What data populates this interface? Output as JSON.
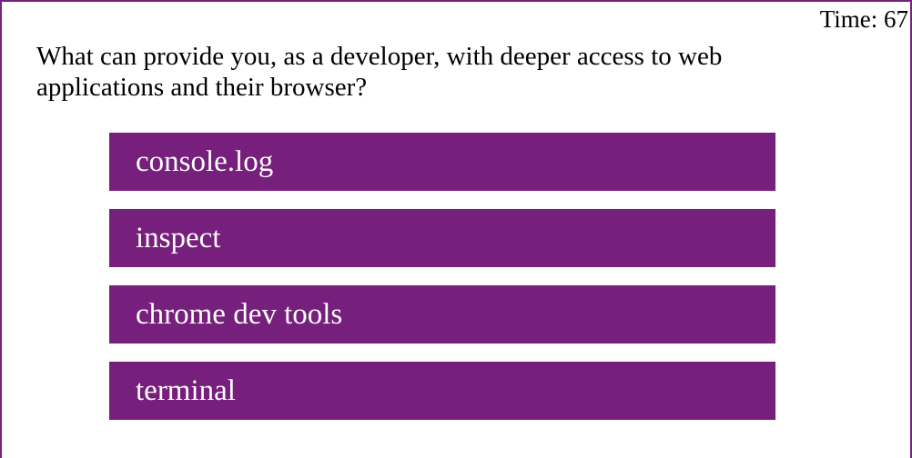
{
  "timer": {
    "label": "Time: 67"
  },
  "quiz": {
    "question": "What can provide you, as a developer, with deeper access to web applications and their browser?",
    "answers": [
      "console.log",
      "inspect",
      "chrome dev tools",
      "terminal"
    ]
  },
  "colors": {
    "accent": "#761f7c",
    "border": "#7a1f7e"
  }
}
